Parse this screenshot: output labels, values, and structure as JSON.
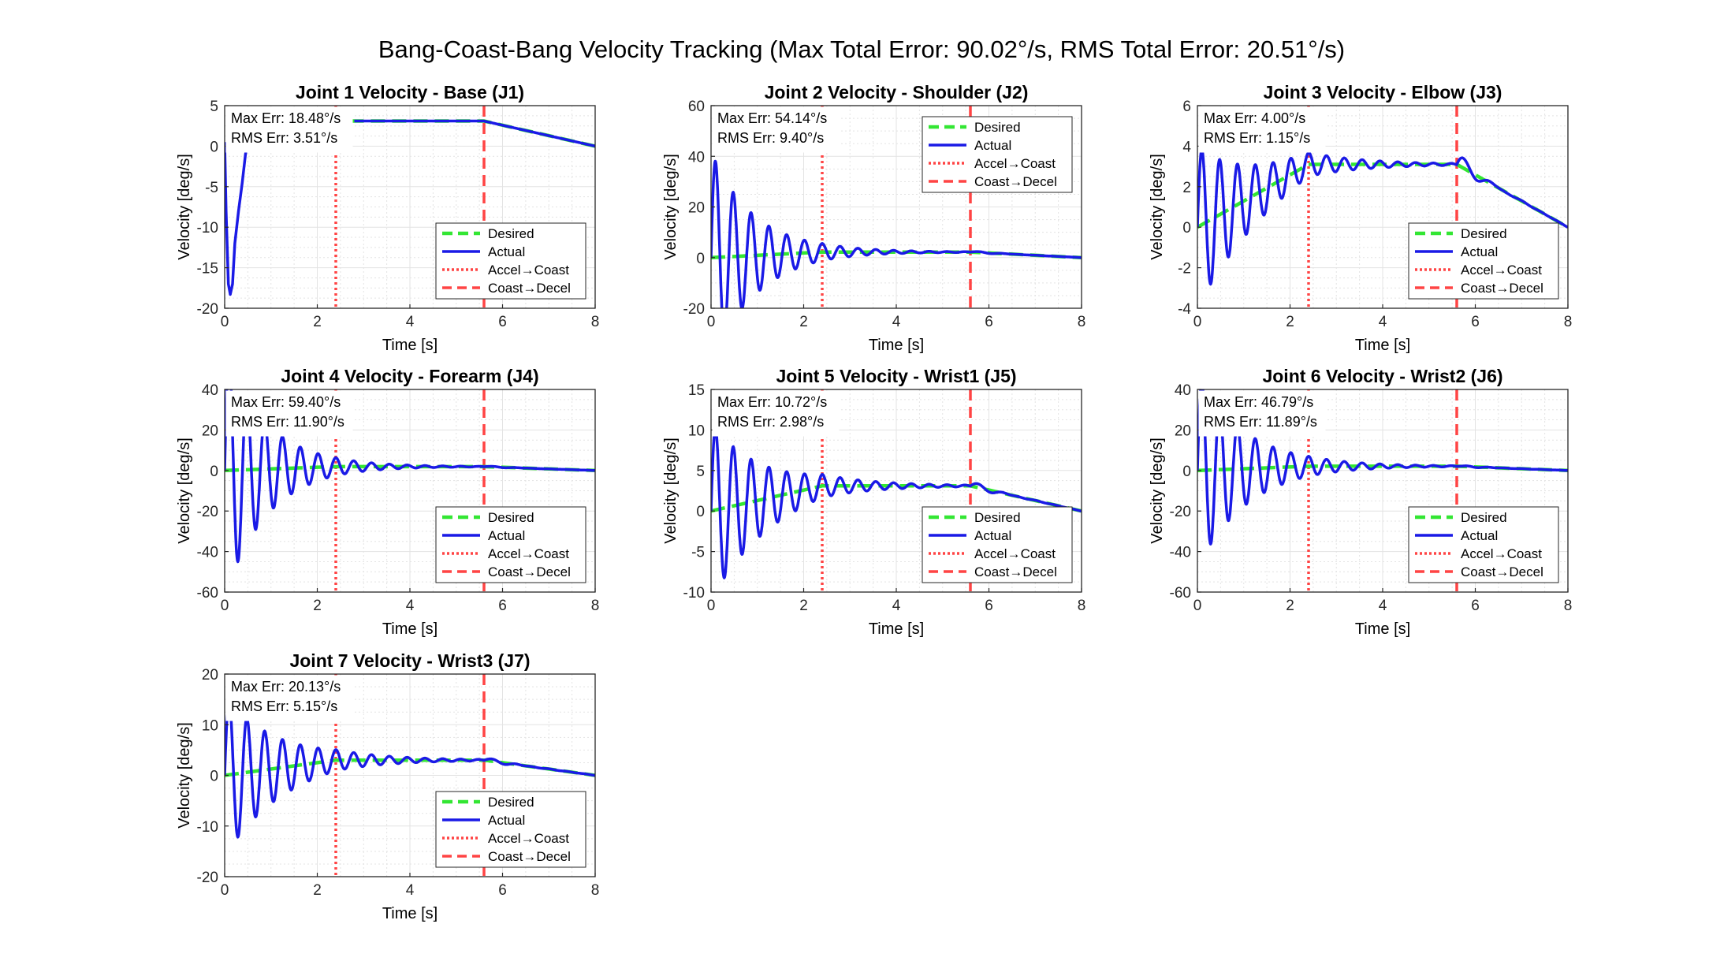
{
  "figure_title": "Bang-Coast-Bang Velocity Tracking (Max Total Error: 90.02°/s, RMS Total Error: 20.51°/s)",
  "colors": {
    "desired": "#33e633",
    "actual": "#1a1ae6",
    "markers": "#ff4444",
    "grid": "#e3e3e3",
    "axes": "#262626"
  },
  "legend": [
    "Desired",
    "Actual",
    "Accel→Coast",
    "Coast→Decel"
  ],
  "chart_data": [
    {
      "type": "line",
      "title": "Joint 1 Velocity - Base (J1)",
      "xlabel": "Time [s]",
      "ylabel": "Velocity [deg/s]",
      "xlim": [
        0,
        8
      ],
      "ylim": [
        -20,
        5
      ],
      "xticks": [
        0,
        2,
        4,
        6,
        8
      ],
      "yticks": [
        -20,
        -15,
        -10,
        -5,
        0,
        5
      ],
      "max_err": "Max Err: 18.48°/s",
      "rms_err": "RMS Err: 3.51°/s",
      "accel_coast": 2.4,
      "coast_decel": 5.6,
      "plateau": 3.1,
      "actual_extra": [
        [
          0,
          0.5
        ],
        [
          0.03,
          -8
        ],
        [
          0.08,
          -17
        ],
        [
          0.12,
          -18.3
        ],
        [
          0.17,
          -17
        ],
        [
          0.22,
          -12
        ],
        [
          0.3,
          -8
        ],
        [
          0.38,
          -4.5
        ],
        [
          0.45,
          -1
        ],
        [
          0.5,
          0.8
        ]
      ],
      "grid": true,
      "legend_position": "bottom-right"
    },
    {
      "type": "line",
      "title": "Joint 2 Velocity - Shoulder (J2)",
      "xlabel": "Time [s]",
      "ylabel": "Velocity [deg/s]",
      "xlim": [
        0,
        8
      ],
      "ylim": [
        -20,
        60
      ],
      "xticks": [
        0,
        2,
        4,
        6,
        8
      ],
      "yticks": [
        -20,
        0,
        20,
        40,
        60
      ],
      "max_err": "Max Err: 54.14°/s",
      "rms_err": "RMS Err: 9.40°/s",
      "accel_coast": 2.4,
      "coast_decel": 5.6,
      "plateau": 2.2,
      "amp0": 42,
      "freq": 2.6,
      "decay": 1.05,
      "grid": true,
      "legend_position": "top-right"
    },
    {
      "type": "line",
      "title": "Joint 3 Velocity - Elbow (J3)",
      "xlabel": "Time [s]",
      "ylabel": "Velocity [deg/s]",
      "xlim": [
        0,
        8
      ],
      "ylim": [
        -4,
        6
      ],
      "xticks": [
        0,
        2,
        4,
        6,
        8
      ],
      "yticks": [
        -4,
        -2,
        0,
        2,
        4,
        6
      ],
      "max_err": "Max Err: 4.00°/s",
      "rms_err": "RMS Err: 1.15°/s",
      "accel_coast": 2.4,
      "coast_decel": 5.6,
      "plateau": 3.1,
      "amp0": 4.0,
      "freq": 2.6,
      "decay": 0.8,
      "grid": true,
      "legend_position": "bottom-right"
    },
    {
      "type": "line",
      "title": "Joint 4 Velocity - Forearm (J4)",
      "xlabel": "Time [s]",
      "ylabel": "Velocity [deg/s]",
      "xlim": [
        0,
        8
      ],
      "ylim": [
        -60,
        40
      ],
      "xticks": [
        0,
        2,
        4,
        6,
        8
      ],
      "yticks": [
        -60,
        -40,
        -20,
        0,
        20,
        40
      ],
      "max_err": "Max Err: 59.40°/s",
      "rms_err": "RMS Err: 11.90°/s",
      "accel_coast": 2.4,
      "coast_decel": 5.6,
      "plateau": 1.9,
      "amp0": 62,
      "freq": 2.6,
      "decay": 1.1,
      "grid": true,
      "legend_position": "bottom-right"
    },
    {
      "type": "line",
      "title": "Joint 5 Velocity - Wrist1 (J5)",
      "xlabel": "Time [s]",
      "ylabel": "Velocity [deg/s]",
      "xlim": [
        0,
        8
      ],
      "ylim": [
        -10,
        15
      ],
      "xticks": [
        0,
        2,
        4,
        6,
        8
      ],
      "yticks": [
        -10,
        -5,
        0,
        5,
        10,
        15
      ],
      "max_err": "Max Err: 10.72°/s",
      "rms_err": "RMS Err: 2.98°/s",
      "accel_coast": 2.4,
      "coast_decel": 5.6,
      "plateau": 3.1,
      "amp0": 11,
      "freq": 2.6,
      "decay": 0.85,
      "grid": true,
      "legend_position": "bottom-right"
    },
    {
      "type": "line",
      "title": "Joint 6 Velocity - Wrist2 (J6)",
      "xlabel": "Time [s]",
      "ylabel": "Velocity [deg/s]",
      "xlim": [
        0,
        8
      ],
      "ylim": [
        -60,
        40
      ],
      "xticks": [
        0,
        2,
        4,
        6,
        8
      ],
      "yticks": [
        -60,
        -40,
        -20,
        0,
        20,
        40
      ],
      "max_err": "Max Err: 46.79°/s",
      "rms_err": "RMS Err: 11.89°/s",
      "accel_coast": 2.4,
      "coast_decel": 5.6,
      "plateau": 2.1,
      "amp0": 48,
      "freq": 2.6,
      "decay": 0.95,
      "grid": true,
      "legend_position": "bottom-right"
    },
    {
      "type": "line",
      "title": "Joint 7 Velocity - Wrist3 (J7)",
      "xlabel": "Time [s]",
      "ylabel": "Velocity [deg/s]",
      "xlim": [
        0,
        8
      ],
      "ylim": [
        -20,
        20
      ],
      "xticks": [
        0,
        2,
        4,
        6,
        8
      ],
      "yticks": [
        -20,
        -10,
        0,
        10,
        20
      ],
      "max_err": "Max Err: 20.13°/s",
      "rms_err": "RMS Err: 5.15°/s",
      "accel_coast": 2.4,
      "coast_decel": 5.6,
      "plateau": 3.0,
      "amp0": 16,
      "freq": 2.6,
      "decay": 0.85,
      "grid": true,
      "legend_position": "bottom-right"
    }
  ]
}
